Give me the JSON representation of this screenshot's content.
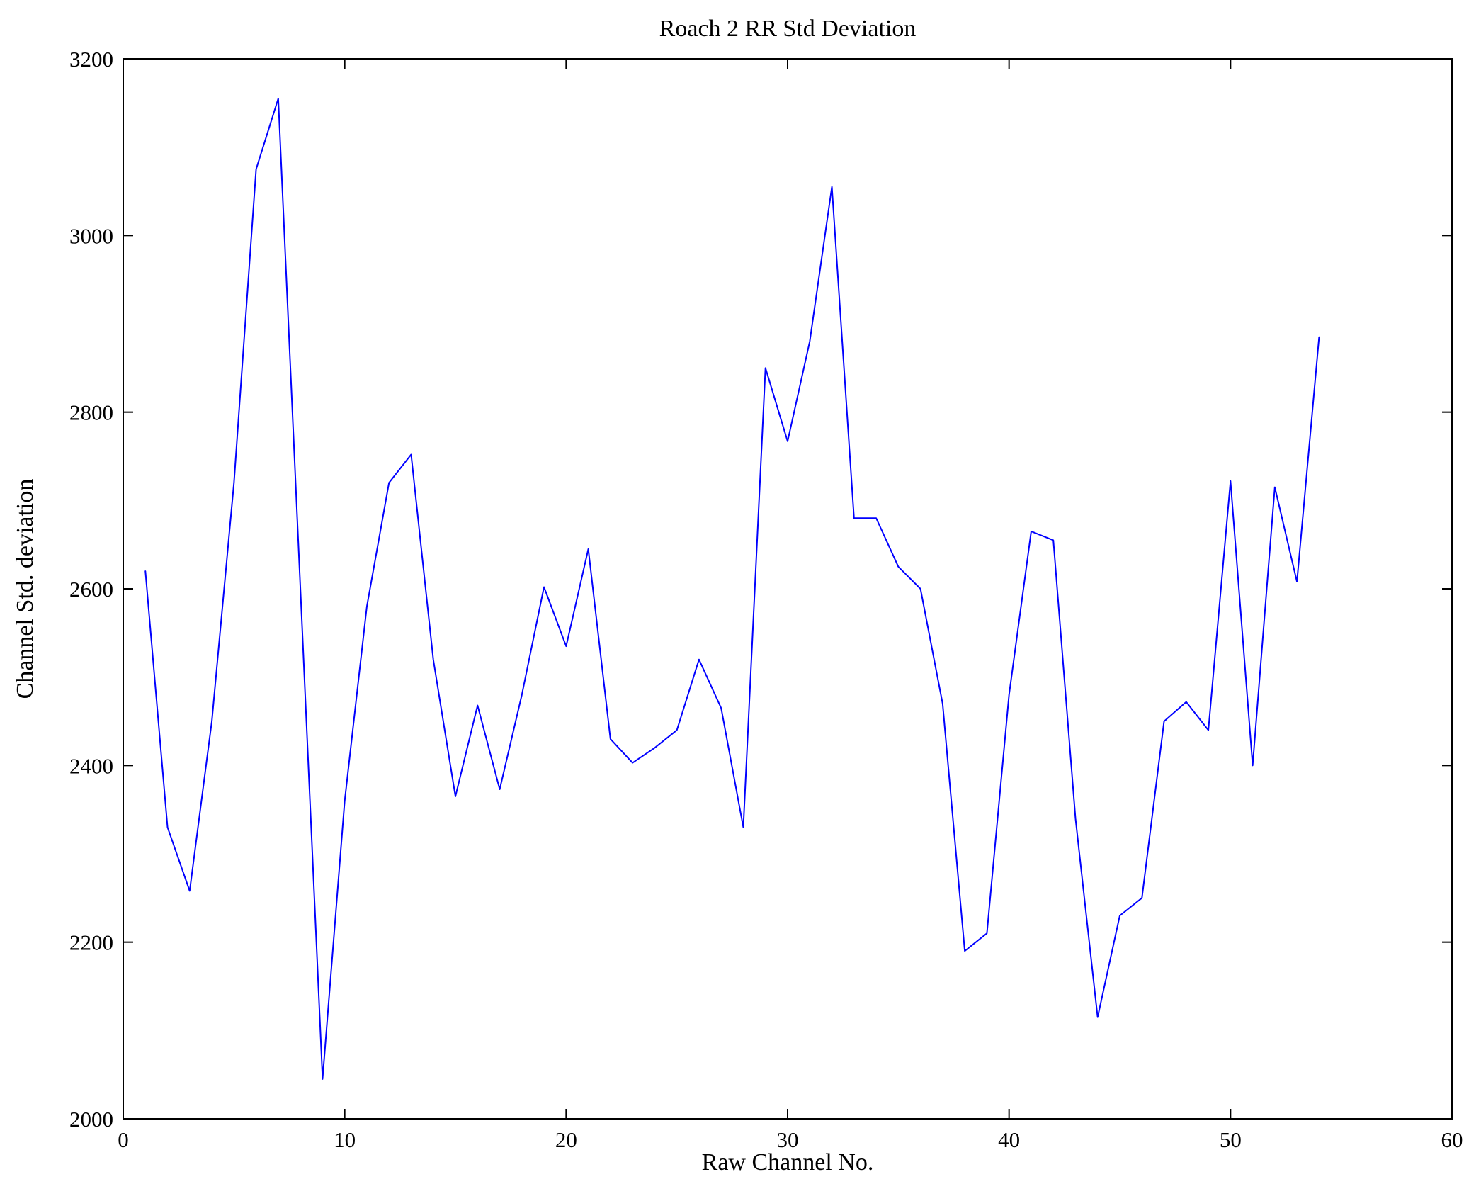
{
  "chart_data": {
    "type": "line",
    "title": "Roach 2 RR Std Deviation",
    "xlabel": "Raw Channel No.",
    "ylabel": "Channel Std. deviation",
    "xlim": [
      0,
      60
    ],
    "ylim": [
      2000,
      3200
    ],
    "xticks": [
      0,
      10,
      20,
      30,
      40,
      50,
      60
    ],
    "yticks": [
      2000,
      2200,
      2400,
      2600,
      2800,
      3000,
      3200
    ],
    "grid": false,
    "legend": "none",
    "line_color": "#0000ff",
    "axes_color": "#000000",
    "background_color": "#ffffff",
    "x": [
      1,
      2,
      3,
      4,
      5,
      6,
      7,
      8,
      9,
      10,
      11,
      12,
      13,
      14,
      15,
      16,
      17,
      18,
      19,
      20,
      21,
      22,
      23,
      24,
      25,
      26,
      27,
      28,
      29,
      30,
      31,
      32,
      33,
      34,
      35,
      36,
      37,
      38,
      39,
      40,
      41,
      42,
      43,
      44,
      45,
      46,
      47,
      48,
      49,
      50,
      51,
      52,
      53,
      54
    ],
    "y": [
      2620,
      2330,
      2258,
      2450,
      2720,
      3075,
      3155,
      2600,
      2045,
      2360,
      2580,
      2720,
      2752,
      2520,
      2365,
      2468,
      2373,
      2480,
      2602,
      2535,
      2645,
      2430,
      2403,
      2420,
      2440,
      2520,
      2465,
      2330,
      2850,
      2767,
      2880,
      3055,
      2680,
      2680,
      2625,
      2600,
      2470,
      2190,
      2210,
      2480,
      2665,
      2655,
      2340,
      2115,
      2230,
      2250,
      2450,
      2472,
      2440,
      2722,
      2400,
      2715,
      2608,
      2885
    ]
  }
}
